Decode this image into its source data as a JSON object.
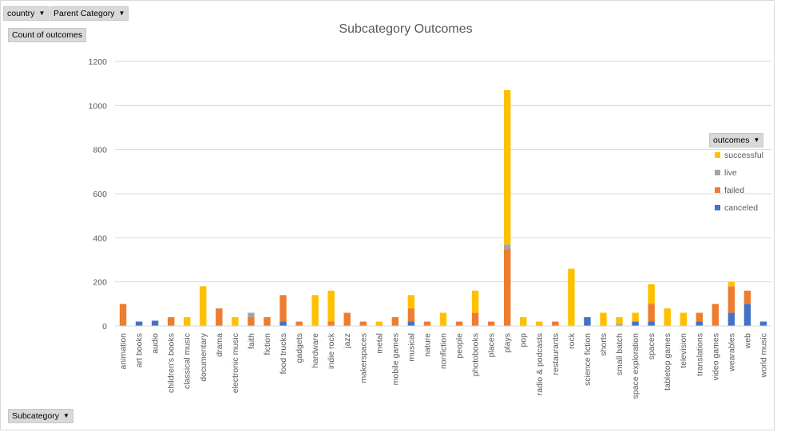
{
  "filters": {
    "country": {
      "label": "country"
    },
    "parent_category": {
      "label": "Parent Category"
    },
    "value_field": {
      "label": "Count of outcomes"
    },
    "axis_field": {
      "label": "Subcategory"
    },
    "legend_field": {
      "label": "outcomes"
    }
  },
  "colors": {
    "successful": "#ffc000",
    "live": "#a5a5a5",
    "failed": "#ed7d31",
    "canceled": "#4472c4",
    "gridline": "#d9d9d9",
    "axis_text": "#595959"
  },
  "chart_data": {
    "type": "bar",
    "stacked": true,
    "title": "Subcategory Outcomes",
    "xlabel": "",
    "ylabel": "",
    "ylim": [
      0,
      1200
    ],
    "yticks": [
      0,
      200,
      400,
      600,
      800,
      1000,
      1200
    ],
    "grid": true,
    "legend_position": "right",
    "categories": [
      "animation",
      "art books",
      "audio",
      "children's books",
      "classical music",
      "documentary",
      "drama",
      "electronic music",
      "faith",
      "fiction",
      "food trucks",
      "gadgets",
      "hardware",
      "indie rock",
      "jazz",
      "makerspaces",
      "metal",
      "mobile games",
      "musical",
      "nature",
      "nonfiction",
      "people",
      "photobooks",
      "places",
      "plays",
      "pop",
      "radio & podcasts",
      "restaurants",
      "rock",
      "science fiction",
      "shorts",
      "small batch",
      "space exploration",
      "spaces",
      "tabletop games",
      "television",
      "translations",
      "video games",
      "wearables",
      "web",
      "world music"
    ],
    "series": [
      {
        "name": "canceled",
        "values": [
          0,
          20,
          24,
          0,
          0,
          0,
          0,
          0,
          0,
          0,
          20,
          0,
          0,
          0,
          0,
          0,
          0,
          0,
          20,
          0,
          0,
          0,
          0,
          0,
          0,
          0,
          0,
          0,
          0,
          40,
          0,
          0,
          20,
          20,
          0,
          0,
          20,
          0,
          60,
          100,
          20
        ]
      },
      {
        "name": "failed",
        "values": [
          100,
          0,
          0,
          40,
          0,
          0,
          80,
          0,
          40,
          40,
          120,
          20,
          0,
          20,
          60,
          20,
          0,
          40,
          60,
          20,
          0,
          20,
          60,
          20,
          350,
          0,
          0,
          20,
          0,
          0,
          0,
          0,
          0,
          80,
          0,
          0,
          40,
          100,
          120,
          60,
          0
        ]
      },
      {
        "name": "live",
        "values": [
          0,
          0,
          0,
          0,
          0,
          0,
          0,
          0,
          20,
          0,
          0,
          0,
          0,
          0,
          0,
          0,
          0,
          0,
          0,
          0,
          0,
          0,
          0,
          0,
          20,
          0,
          0,
          0,
          0,
          0,
          0,
          10,
          0,
          4,
          0,
          0,
          0,
          0,
          0,
          0,
          0
        ]
      },
      {
        "name": "successful",
        "values": [
          0,
          0,
          0,
          0,
          40,
          180,
          0,
          40,
          0,
          0,
          0,
          0,
          140,
          140,
          0,
          0,
          20,
          0,
          60,
          0,
          60,
          0,
          100,
          0,
          700,
          40,
          20,
          0,
          260,
          0,
          60,
          30,
          40,
          86,
          80,
          60,
          0,
          0,
          20,
          0,
          0
        ]
      }
    ]
  }
}
